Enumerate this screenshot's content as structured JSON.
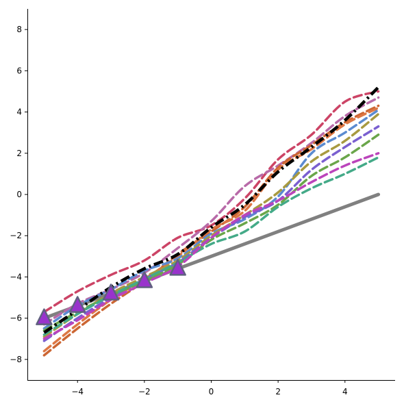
{
  "chart_data": {
    "type": "line",
    "title": "",
    "xlabel": "",
    "ylabel": "",
    "xlim": [
      -5.5,
      5.5
    ],
    "ylim": [
      -9,
      9
    ],
    "xticks": [
      -4,
      -2,
      0,
      2,
      4
    ],
    "yticks": [
      -8,
      -6,
      -4,
      -2,
      0,
      2,
      4,
      6,
      8
    ],
    "xtick_labels": [
      "−4",
      "−2",
      "0",
      "2",
      "4"
    ],
    "ytick_labels": [
      "−8",
      "−6",
      "−4",
      "−2",
      "0",
      "2",
      "4",
      "6",
      "8"
    ],
    "grid": false,
    "spines": "left-bottom",
    "x": [
      -5,
      -4,
      -3,
      -2,
      -1,
      0,
      1,
      2,
      3,
      4,
      5
    ],
    "reference_line": {
      "color": "#808080",
      "x": [
        -5,
        5
      ],
      "y": [
        -6,
        0
      ]
    },
    "mean_line": {
      "color": "#000000",
      "style": "dash-dot",
      "y": [
        -6.7,
        -5.6,
        -4.5,
        -3.6,
        -2.9,
        -1.6,
        -0.5,
        1.1,
        2.3,
        3.6,
        5.2
      ]
    },
    "series": [
      {
        "color": "#cc4466",
        "y": [
          -5.7,
          -4.7,
          -3.9,
          -3.2,
          -2.1,
          -1.5,
          -0.2,
          1.7,
          2.9,
          4.5,
          5.0
        ]
      },
      {
        "color": "#b86aa8",
        "y": [
          -6.3,
          -5.3,
          -4.6,
          -3.8,
          -2.6,
          -1.3,
          0.4,
          1.4,
          2.5,
          3.8,
          4.7
        ]
      },
      {
        "color": "#cc6633",
        "y": [
          -7.8,
          -6.5,
          -5.3,
          -4.2,
          -2.9,
          -1.8,
          -0.6,
          1.3,
          2.4,
          3.5,
          4.3
        ]
      },
      {
        "color": "#dd7744",
        "y": [
          -7.6,
          -6.3,
          -5.1,
          -4.1,
          -3.0,
          -1.7,
          -0.8,
          1.2,
          2.2,
          3.4,
          4.2
        ]
      },
      {
        "color": "#5b8bd0",
        "y": [
          -6.5,
          -5.4,
          -4.6,
          -3.7,
          -3.1,
          -1.9,
          -1.2,
          -0.1,
          2.0,
          3.0,
          4.1
        ]
      },
      {
        "color": "#a89a40",
        "y": [
          -6.9,
          -5.8,
          -4.8,
          -4.0,
          -3.2,
          -2.0,
          -1.0,
          0.1,
          1.6,
          2.6,
          3.9
        ]
      },
      {
        "color": "#7a5fd0",
        "y": [
          -7.1,
          -6.0,
          -5.0,
          -4.1,
          -3.3,
          -2.1,
          -1.1,
          -0.3,
          1.2,
          2.3,
          3.3
        ]
      },
      {
        "color": "#6aa64a",
        "y": [
          -6.6,
          -5.7,
          -4.9,
          -4.2,
          -3.4,
          -2.2,
          -1.4,
          -0.5,
          0.9,
          1.8,
          2.9
        ]
      },
      {
        "color": "#44aa88",
        "y": [
          -6.8,
          -5.8,
          -4.9,
          -4.1,
          -3.3,
          -2.4,
          -1.8,
          -0.6,
          0.3,
          1.0,
          1.8
        ]
      },
      {
        "color": "#bb44bb",
        "y": [
          -7.0,
          -6.1,
          -5.1,
          -4.3,
          -3.5,
          -2.1,
          -1.0,
          -0.3,
          0.6,
          1.4,
          2.0
        ]
      }
    ],
    "markers": {
      "shape": "triangle",
      "fill": "#9933cc",
      "edge": "#606080",
      "x": [
        -5,
        -4,
        -3,
        -2,
        -1
      ],
      "y": [
        -6.0,
        -5.4,
        -4.8,
        -4.2,
        -3.6
      ]
    }
  }
}
